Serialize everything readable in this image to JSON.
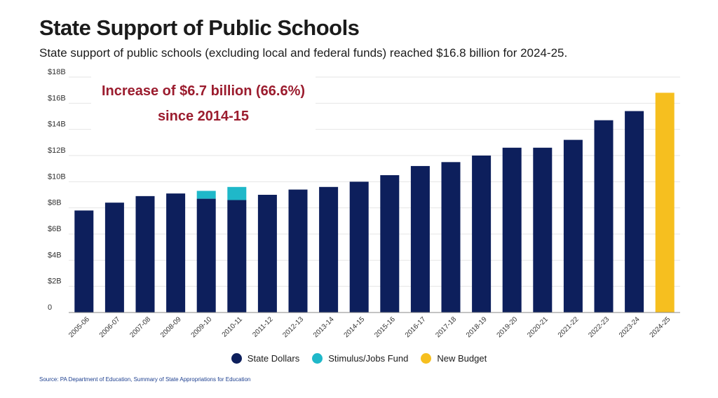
{
  "title": "State Support of Public Schools",
  "subtitle": "State support of public schools (excluding local and federal funds) reached $16.8 billion for 2024-25.",
  "callout": {
    "line1": "Increase of $6.7 billion (66.6%)",
    "line2": "since 2014-15"
  },
  "legend": [
    {
      "label": "State Dollars",
      "color": "#0d1f5c"
    },
    {
      "label": "Stimulus/Jobs Fund",
      "color": "#1fb8c9"
    },
    {
      "label": "New Budget",
      "color": "#f6bf1f"
    }
  ],
  "source": "Source: PA Department of Education, Summary of State Appropriations for Education",
  "chart_data": {
    "type": "bar",
    "stacked": true,
    "categories": [
      "2005-06",
      "2006-07",
      "2007-08",
      "2008-09",
      "2009-10",
      "2010-11",
      "2011-12",
      "2012-13",
      "2013-14",
      "2014-15",
      "2015-16",
      "2016-17",
      "2017-18",
      "2018-19",
      "2019-20",
      "2020-21",
      "2021-22",
      "2022-23",
      "2023-24",
      "2024-25"
    ],
    "series": [
      {
        "name": "State Dollars",
        "color": "#0d1f5c",
        "values": [
          7.8,
          8.4,
          8.9,
          9.1,
          8.7,
          8.6,
          9.0,
          9.4,
          9.6,
          10.0,
          10.5,
          11.2,
          11.5,
          12.0,
          12.6,
          12.6,
          13.2,
          14.7,
          15.4,
          null
        ]
      },
      {
        "name": "Stimulus/Jobs Fund",
        "color": "#1fb8c9",
        "values": [
          null,
          null,
          null,
          null,
          0.6,
          1.0,
          null,
          null,
          null,
          null,
          null,
          null,
          null,
          null,
          null,
          null,
          null,
          null,
          null,
          null
        ]
      },
      {
        "name": "New Budget",
        "color": "#f6bf1f",
        "values": [
          null,
          null,
          null,
          null,
          null,
          null,
          null,
          null,
          null,
          null,
          null,
          null,
          null,
          null,
          null,
          null,
          null,
          null,
          null,
          16.8
        ]
      }
    ],
    "y_ticks": [
      "0",
      "$2B",
      "$4B",
      "$6B",
      "$8B",
      "$10B",
      "$12B",
      "$14B",
      "$16B",
      "$18B"
    ],
    "ylim": [
      0,
      18
    ],
    "grid": true,
    "legend_position": "bottom"
  }
}
